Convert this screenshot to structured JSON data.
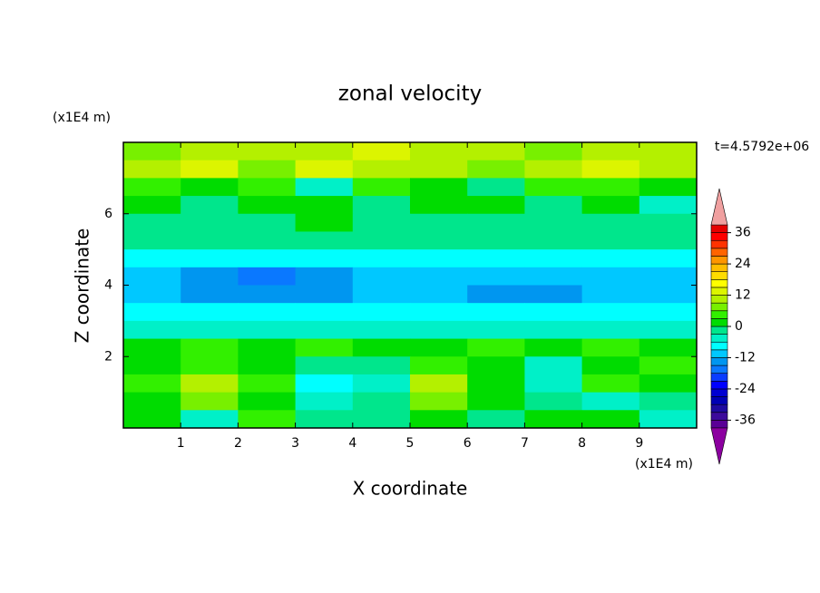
{
  "chart_data": {
    "type": "contour",
    "title": "zonal velocity",
    "x_label": "X coordinate",
    "y_label": "Z coordinate",
    "x_unit": "(x1E4 m)",
    "y_unit": "(x1E4 m)",
    "time_label": "t=4.5792e+06",
    "xlim": [
      0,
      10
    ],
    "ylim": [
      0,
      8
    ],
    "xticks": [
      1,
      2,
      3,
      4,
      5,
      6,
      7,
      8,
      9
    ],
    "yticks": [
      2,
      4,
      6
    ],
    "field": [
      [
        8,
        11,
        10,
        9,
        12,
        10,
        9,
        8,
        11,
        10
      ],
      [
        10,
        12,
        8,
        13,
        9,
        11,
        7,
        10,
        12,
        9
      ],
      [
        4,
        2,
        5,
        -4,
        3,
        1,
        -2,
        4,
        5,
        2
      ],
      [
        1,
        -2,
        0,
        2,
        -1,
        1,
        0,
        -2,
        2,
        -4
      ],
      [
        -2,
        -3,
        -2,
        2,
        -3,
        -2,
        -3,
        -2,
        -3,
        -2
      ],
      [
        -3,
        -2,
        -3,
        -2,
        -3,
        -3,
        -2,
        -3,
        -2,
        -3
      ],
      [
        -7,
        -7,
        -7,
        -7,
        -7,
        -7,
        -7,
        -7,
        -7,
        -7
      ],
      [
        -10,
        -15,
        -16,
        -15,
        -10,
        -10,
        -10,
        -10,
        -10,
        -10
      ],
      [
        -10,
        -14,
        -15,
        -13,
        -10,
        -10,
        -14,
        -15,
        -10,
        -10
      ],
      [
        -9,
        -9,
        -9,
        -9,
        -9,
        -9,
        -9,
        -9,
        -9,
        -9
      ],
      [
        -5,
        -5,
        -5,
        -5,
        -5,
        -5,
        -5,
        -5,
        -5,
        -5
      ],
      [
        2,
        4,
        1,
        3,
        2,
        1,
        4,
        2,
        3,
        1
      ],
      [
        2,
        5,
        1,
        -2,
        -3,
        4,
        2,
        -4,
        1,
        3
      ],
      [
        4,
        10,
        5,
        -8,
        -4,
        10,
        1,
        -6,
        4,
        2
      ],
      [
        2,
        6,
        1,
        -5,
        -2,
        7,
        2,
        -3,
        -5,
        -2
      ],
      [
        1,
        -6,
        3,
        -2,
        -3,
        1,
        -2,
        2,
        1,
        -4
      ]
    ],
    "clim": [
      -39,
      39
    ],
    "cticks": [
      -36,
      -24,
      -12,
      0,
      12,
      24,
      36
    ],
    "colors": [
      "#5a0096",
      "#3c0a9b",
      "#1e0aa0",
      "#0000b4",
      "#0000d2",
      "#0000ff",
      "#0a3cff",
      "#0a78ff",
      "#0096f0",
      "#00c8ff",
      "#00ffff",
      "#00f0c8",
      "#00e68c",
      "#00dc00",
      "#32f000",
      "#78f000",
      "#b4f000",
      "#dcf500",
      "#ffff00",
      "#ffdc00",
      "#ffbe00",
      "#ff9600",
      "#ff6400",
      "#ff3200",
      "#ff0000",
      "#e60000"
    ],
    "under_color": "#8c00a0",
    "over_color": "#f0a0a0"
  }
}
